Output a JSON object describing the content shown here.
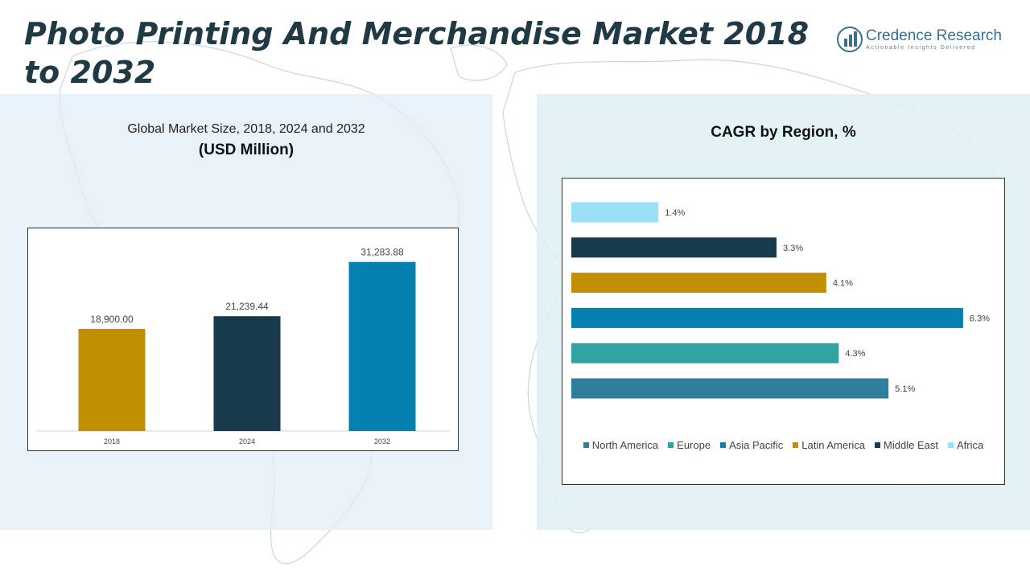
{
  "header": {
    "title": "Photo Printing And Merchandise Market 2018 to 2032",
    "logo_name": "Credence Research",
    "logo_tagline": "Actionable Insights Delivered"
  },
  "left_panel": {
    "subtitle": "Global Market Size, 2018, 2024 and 2032",
    "unit": "(USD Million)"
  },
  "right_panel": {
    "title": "CAGR by Region, %"
  },
  "chart_data": [
    {
      "type": "bar",
      "categories": [
        "2018",
        "2024",
        "2032"
      ],
      "values": [
        18900.0,
        21239.44,
        31283.88
      ],
      "value_labels": [
        "18,900.00",
        "21,239.44",
        "31,283.88"
      ],
      "colors": [
        "#c09002",
        "#173b4b",
        "#0680b1"
      ],
      "ylim": [
        0,
        36000
      ],
      "grid": false
    },
    {
      "type": "bar",
      "orientation": "horizontal",
      "categories": [
        "North America",
        "Europe",
        "Asia Pacific",
        "Latin America",
        "Middle East",
        "Africa"
      ],
      "values": [
        5.1,
        4.3,
        6.3,
        4.1,
        3.3,
        1.4
      ],
      "value_labels": [
        "5.1%",
        "4.3%",
        "6.3%",
        "4.1%",
        "3.3%",
        "1.4%"
      ],
      "colors": [
        "#2e7d9b",
        "#31a3a2",
        "#0680b1",
        "#c09002",
        "#173b4b",
        "#9ce0f7"
      ],
      "xlim": [
        0,
        7
      ],
      "legend": "bottom",
      "grid": false
    }
  ]
}
